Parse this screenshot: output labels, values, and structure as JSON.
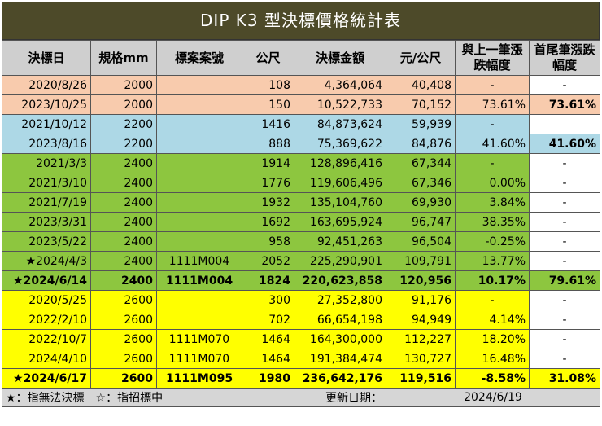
{
  "title": "DIP K3 型決標價格統計表",
  "headers": [
    "決標日",
    "規格mm",
    "標案案號",
    "公尺",
    "決標金額",
    "元/公尺",
    "與上一筆漲跌幅度",
    "首尾筆漲跌幅度"
  ],
  "colors": {
    "peach": "#f8cbad",
    "blue": "#add8e6",
    "green": "#8dc63f",
    "yellow": "#ffff00",
    "white": "#ffffff",
    "header": "#cfcfcf",
    "title_bg": "#4d4a29"
  },
  "rows": [
    {
      "date": "2020/8/26",
      "spec": "2000",
      "case": "",
      "meters": "108",
      "amount": "4,364,064",
      "per_m": "40,408",
      "change_prev": "-",
      "change_total": "-",
      "color": "peach",
      "total_color": "white",
      "bold": false
    },
    {
      "date": "2023/10/25",
      "spec": "2000",
      "case": "",
      "meters": "150",
      "amount": "10,522,733",
      "per_m": "70,152",
      "change_prev": "73.61%",
      "change_total": "73.61%",
      "color": "peach",
      "total_color": "peach",
      "bold": false,
      "total_bold": true
    },
    {
      "date": "2021/10/12",
      "spec": "2200",
      "case": "",
      "meters": "1416",
      "amount": "84,873,624",
      "per_m": "59,939",
      "change_prev": "-",
      "change_total": "",
      "color": "blue",
      "total_color": "white",
      "bold": false
    },
    {
      "date": "2023/8/16",
      "spec": "2200",
      "case": "",
      "meters": "888",
      "amount": "75,369,622",
      "per_m": "84,876",
      "change_prev": "41.60%",
      "change_total": "41.60%",
      "color": "blue",
      "total_color": "blue",
      "bold": false,
      "total_bold": true
    },
    {
      "date": "2021/3/3",
      "spec": "2400",
      "case": "",
      "meters": "1914",
      "amount": "128,896,416",
      "per_m": "67,344",
      "change_prev": "-",
      "change_total": "-",
      "color": "green",
      "total_color": "white",
      "bold": false
    },
    {
      "date": "2021/3/10",
      "spec": "2400",
      "case": "",
      "meters": "1776",
      "amount": "119,606,496",
      "per_m": "67,346",
      "change_prev": "0.00%",
      "change_total": "-",
      "color": "green",
      "total_color": "white",
      "bold": false
    },
    {
      "date": "2021/7/19",
      "spec": "2400",
      "case": "",
      "meters": "1932",
      "amount": "135,104,760",
      "per_m": "69,930",
      "change_prev": "3.84%",
      "change_total": "-",
      "color": "green",
      "total_color": "white",
      "bold": false
    },
    {
      "date": "2023/3/31",
      "spec": "2400",
      "case": "",
      "meters": "1692",
      "amount": "163,695,924",
      "per_m": "96,747",
      "change_prev": "38.35%",
      "change_total": "-",
      "color": "green",
      "total_color": "white",
      "bold": false
    },
    {
      "date": "2023/5/22",
      "spec": "2400",
      "case": "",
      "meters": "958",
      "amount": "92,451,263",
      "per_m": "96,504",
      "change_prev": "-0.25%",
      "change_total": "-",
      "color": "green",
      "total_color": "white",
      "bold": false
    },
    {
      "date": "★2024/4/3",
      "spec": "2400",
      "case": "1111M004",
      "meters": "2052",
      "amount": "225,290,901",
      "per_m": "109,791",
      "change_prev": "13.77%",
      "change_total": "-",
      "color": "green",
      "total_color": "white",
      "bold": false
    },
    {
      "date": "★2024/6/14",
      "spec": "2400",
      "case": "1111M004",
      "meters": "1824",
      "amount": "220,623,858",
      "per_m": "120,956",
      "change_prev": "10.17%",
      "change_total": "79.61%",
      "color": "green",
      "total_color": "green",
      "bold": true,
      "total_bold": true
    },
    {
      "date": "2020/5/25",
      "spec": "2600",
      "case": "",
      "meters": "300",
      "amount": "27,352,800",
      "per_m": "91,176",
      "change_prev": "-",
      "change_total": "-",
      "color": "yellow",
      "total_color": "white",
      "bold": false
    },
    {
      "date": "2022/2/10",
      "spec": "2600",
      "case": "",
      "meters": "702",
      "amount": "66,654,198",
      "per_m": "94,949",
      "change_prev": "4.14%",
      "change_total": "-",
      "color": "yellow",
      "total_color": "white",
      "bold": false
    },
    {
      "date": "2022/10/7",
      "spec": "2600",
      "case": "1111M070",
      "meters": "1464",
      "amount": "164,300,000",
      "per_m": "112,227",
      "change_prev": "18.20%",
      "change_total": "-",
      "color": "yellow",
      "total_color": "white",
      "bold": false
    },
    {
      "date": "2024/4/10",
      "spec": "2600",
      "case": "1111M070",
      "meters": "1464",
      "amount": "191,384,474",
      "per_m": "130,727",
      "change_prev": "16.48%",
      "change_total": "-",
      "color": "yellow",
      "total_color": "white",
      "bold": false
    },
    {
      "date": "★2024/6/17",
      "spec": "2600",
      "case": "1111M095",
      "meters": "1980",
      "amount": "236,642,176",
      "per_m": "119,516",
      "change_prev": "-8.58%",
      "change_total": "31.08%",
      "color": "yellow",
      "total_color": "yellow",
      "bold": true,
      "total_bold": true
    }
  ],
  "footer": {
    "legend": "★：指無法決標　☆：指招標中",
    "update_label": "更新日期：",
    "update_date": "2024/6/19"
  }
}
